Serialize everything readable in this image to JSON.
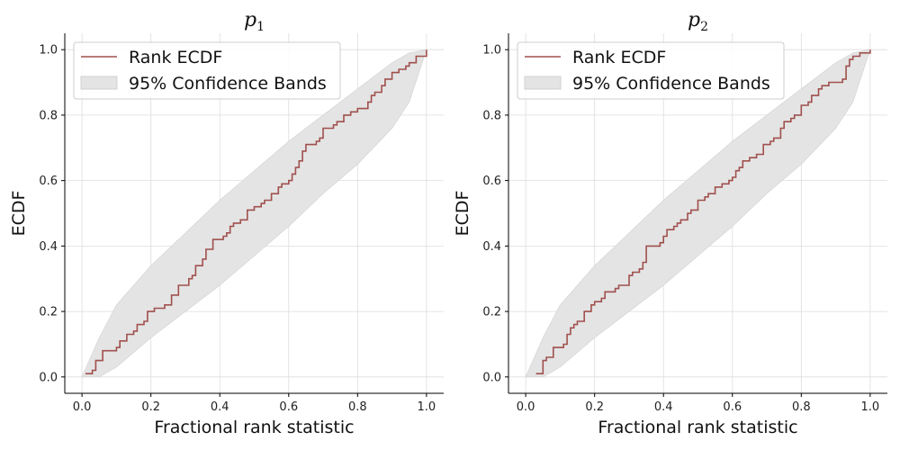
{
  "colors": {
    "ecdf": "#a0504d",
    "band_fill": "#e4e4e4",
    "band_edge": "#d0d0d0",
    "grid": "#dddddd",
    "axis": "#000000"
  },
  "chart_data": [
    {
      "type": "line",
      "title": "p",
      "title_subscript": "1",
      "xlabel": "Fractional rank statistic",
      "ylabel": "ECDF",
      "xlim": [
        -0.05,
        1.05
      ],
      "ylim": [
        -0.05,
        1.05
      ],
      "xticks": [
        "0.0",
        "0.2",
        "0.4",
        "0.6",
        "0.8",
        "1.0"
      ],
      "yticks": [
        "0.0",
        "0.2",
        "0.4",
        "0.6",
        "0.8",
        "1.0"
      ],
      "grid": true,
      "legend_position": "top-left",
      "legend": [
        "Rank ECDF",
        "95% Confidence Bands"
      ],
      "band": {
        "name": "95% Confidence Bands",
        "x": [
          0.0,
          0.05,
          0.1,
          0.2,
          0.3,
          0.4,
          0.5,
          0.6,
          0.7,
          0.8,
          0.9,
          0.95,
          1.0
        ],
        "lower": [
          0.0,
          0.0,
          0.03,
          0.12,
          0.2,
          0.28,
          0.37,
          0.46,
          0.56,
          0.65,
          0.76,
          0.84,
          1.0
        ],
        "upper": [
          0.0,
          0.12,
          0.22,
          0.34,
          0.44,
          0.54,
          0.63,
          0.72,
          0.8,
          0.88,
          0.96,
          0.99,
          1.0
        ]
      },
      "series": [
        {
          "name": "Rank ECDF",
          "x": [
            0.01,
            0.03,
            0.04,
            0.06,
            0.06,
            0.1,
            0.11,
            0.13,
            0.15,
            0.16,
            0.18,
            0.19,
            0.21,
            0.24,
            0.26,
            0.28,
            0.31,
            0.32,
            0.33,
            0.35,
            0.36,
            0.38,
            0.41,
            0.42,
            0.43,
            0.44,
            0.46,
            0.48,
            0.5,
            0.52,
            0.53,
            0.55,
            0.57,
            0.58,
            0.6,
            0.61,
            0.62,
            0.63,
            0.64,
            0.65,
            0.68,
            0.69,
            0.7,
            0.73,
            0.74,
            0.76,
            0.78,
            0.8,
            0.83,
            0.84,
            0.85,
            0.87,
            0.88,
            0.9,
            0.92,
            0.94,
            0.95,
            0.97,
            1.0
          ],
          "y": [
            0.01,
            0.02,
            0.05,
            0.06,
            0.08,
            0.09,
            0.11,
            0.13,
            0.14,
            0.16,
            0.17,
            0.2,
            0.21,
            0.22,
            0.25,
            0.28,
            0.3,
            0.31,
            0.34,
            0.36,
            0.39,
            0.42,
            0.43,
            0.44,
            0.46,
            0.47,
            0.48,
            0.51,
            0.52,
            0.53,
            0.54,
            0.56,
            0.58,
            0.59,
            0.6,
            0.62,
            0.64,
            0.66,
            0.69,
            0.71,
            0.72,
            0.73,
            0.76,
            0.77,
            0.78,
            0.8,
            0.81,
            0.82,
            0.84,
            0.86,
            0.87,
            0.89,
            0.91,
            0.93,
            0.94,
            0.95,
            0.96,
            0.98,
            1.0
          ]
        }
      ]
    },
    {
      "type": "line",
      "title": "p",
      "title_subscript": "2",
      "xlabel": "Fractional rank statistic",
      "ylabel": "ECDF",
      "xlim": [
        -0.05,
        1.05
      ],
      "ylim": [
        -0.05,
        1.05
      ],
      "xticks": [
        "0.0",
        "0.2",
        "0.4",
        "0.6",
        "0.8",
        "1.0"
      ],
      "yticks": [
        "0.0",
        "0.2",
        "0.4",
        "0.6",
        "0.8",
        "1.0"
      ],
      "grid": true,
      "legend_position": "top-left",
      "legend": [
        "Rank ECDF",
        "95% Confidence Bands"
      ],
      "band": {
        "name": "95% Confidence Bands",
        "x": [
          0.0,
          0.05,
          0.1,
          0.2,
          0.3,
          0.4,
          0.5,
          0.6,
          0.7,
          0.8,
          0.9,
          0.95,
          1.0
        ],
        "lower": [
          0.0,
          0.0,
          0.03,
          0.12,
          0.2,
          0.28,
          0.37,
          0.46,
          0.56,
          0.65,
          0.76,
          0.84,
          1.0
        ],
        "upper": [
          0.0,
          0.12,
          0.22,
          0.34,
          0.44,
          0.54,
          0.63,
          0.72,
          0.8,
          0.88,
          0.96,
          0.99,
          1.0
        ]
      },
      "series": [
        {
          "name": "Rank ECDF",
          "x": [
            0.03,
            0.05,
            0.05,
            0.06,
            0.08,
            0.08,
            0.11,
            0.12,
            0.13,
            0.14,
            0.15,
            0.17,
            0.19,
            0.2,
            0.22,
            0.23,
            0.26,
            0.27,
            0.3,
            0.31,
            0.33,
            0.34,
            0.35,
            0.39,
            0.4,
            0.41,
            0.43,
            0.44,
            0.45,
            0.47,
            0.48,
            0.5,
            0.52,
            0.53,
            0.55,
            0.57,
            0.59,
            0.6,
            0.61,
            0.62,
            0.63,
            0.65,
            0.67,
            0.69,
            0.71,
            0.72,
            0.74,
            0.75,
            0.77,
            0.78,
            0.8,
            0.82,
            0.83,
            0.85,
            0.86,
            0.88,
            0.89,
            0.92,
            0.93,
            0.94,
            0.95,
            0.97,
            1.0
          ],
          "y": [
            0.01,
            0.02,
            0.05,
            0.06,
            0.07,
            0.09,
            0.1,
            0.13,
            0.15,
            0.16,
            0.17,
            0.2,
            0.22,
            0.23,
            0.24,
            0.26,
            0.27,
            0.28,
            0.31,
            0.32,
            0.33,
            0.35,
            0.4,
            0.41,
            0.43,
            0.45,
            0.46,
            0.47,
            0.48,
            0.5,
            0.51,
            0.54,
            0.55,
            0.56,
            0.58,
            0.59,
            0.6,
            0.61,
            0.63,
            0.64,
            0.66,
            0.67,
            0.68,
            0.71,
            0.72,
            0.73,
            0.76,
            0.78,
            0.79,
            0.8,
            0.83,
            0.84,
            0.86,
            0.88,
            0.89,
            0.9,
            0.9,
            0.91,
            0.95,
            0.97,
            0.98,
            0.99,
            1.0
          ]
        }
      ]
    }
  ]
}
